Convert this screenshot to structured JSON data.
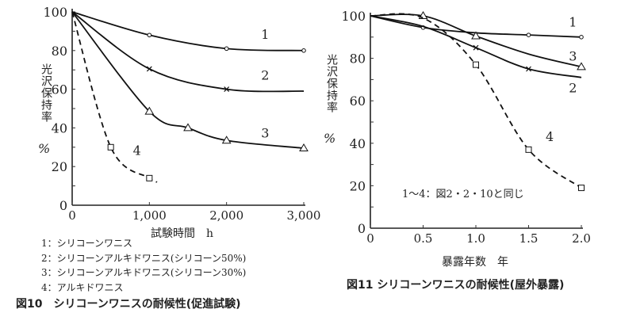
{
  "chart_data": [
    {
      "type": "line",
      "title": "図10　シリコーンワニスの耐候性(促進試験)",
      "xlabel": "試験時間　h",
      "ylabel": "光沢保持率",
      "yunit": "%",
      "xlim": [
        0,
        3000
      ],
      "ylim": [
        0,
        100
      ],
      "xticks": [
        0,
        1000,
        2000,
        3000
      ],
      "xtick_labels": [
        "0",
        "1,000",
        "2,000",
        "3,000"
      ],
      "yticks": [
        0,
        20,
        40,
        60,
        80,
        100
      ],
      "ytick_labels": [
        "0",
        "20",
        "40",
        "60",
        "80",
        "100"
      ],
      "grid": false,
      "series": [
        {
          "name": "1",
          "marker": "circle",
          "dashed": false,
          "x": [
            0,
            1000,
            2000,
            3000
          ],
          "y": [
            100,
            88,
            81,
            80
          ],
          "marked": [
            1,
            2,
            3
          ],
          "label_at": [
            2500,
            86
          ]
        },
        {
          "name": "2",
          "marker": "x",
          "dashed": false,
          "x": [
            0,
            1000,
            2000,
            3000
          ],
          "y": [
            100,
            70.5,
            60,
            59
          ],
          "marked": [
            1,
            2
          ],
          "label_at": [
            2500,
            65
          ]
        },
        {
          "name": "3",
          "marker": "triangle",
          "dashed": false,
          "x": [
            0,
            1000,
            1500,
            2000,
            3000
          ],
          "y": [
            100,
            48.5,
            40,
            33.5,
            29.5
          ],
          "marked": [
            1,
            2,
            3,
            4
          ],
          "label_at": [
            2500,
            35
          ]
        },
        {
          "name": "4",
          "marker": "square",
          "dashed": true,
          "x": [
            0,
            500,
            1000,
            1100
          ],
          "y": [
            100,
            30,
            14,
            12
          ],
          "marked": [
            1,
            2
          ],
          "label_at": [
            840,
            26
          ]
        }
      ],
      "legend": [
        "1：シリコーンワニス",
        "2：シリコーンアルキドワニス(シリコーン50%)",
        "3：シリコーンアルキドワニス(シリコーン30%)",
        "4：アルキドワニス"
      ]
    },
    {
      "type": "line",
      "title": "図11 シリコーンワニスの耐候性(屋外暴露)",
      "xlabel": "暴露年数　年",
      "ylabel": "光沢保持率",
      "yunit": "%",
      "xlim": [
        0,
        2.0
      ],
      "ylim": [
        0,
        100
      ],
      "xticks": [
        0,
        0.5,
        1.0,
        1.5,
        2.0
      ],
      "xtick_labels": [
        "0",
        "0.5",
        "1.0",
        "1.5",
        "2.0"
      ],
      "yticks": [
        0,
        20,
        40,
        60,
        80,
        100
      ],
      "ytick_labels": [
        "0",
        "20",
        "40",
        "60",
        "80",
        "100"
      ],
      "grid": false,
      "annotation": "1～4：図2・2・10と同じ",
      "series": [
        {
          "name": "1",
          "marker": "circle",
          "dashed": false,
          "x": [
            0,
            0.5,
            1.0,
            1.5,
            2.0
          ],
          "y": [
            100,
            94.5,
            92,
            91,
            90
          ],
          "marked": [
            1,
            3,
            4
          ],
          "label_at": [
            1.92,
            95
          ]
        },
        {
          "name": "2",
          "marker": "x",
          "dashed": false,
          "x": [
            0,
            0.5,
            1.0,
            1.5,
            2.0
          ],
          "y": [
            100,
            95,
            85,
            75,
            71
          ],
          "marked": [
            2,
            3
          ],
          "label_at": [
            1.92,
            64
          ]
        },
        {
          "name": "3",
          "marker": "triangle",
          "dashed": false,
          "x": [
            0,
            0.5,
            1.0,
            1.5,
            2.0
          ],
          "y": [
            100,
            100,
            90.5,
            82,
            76
          ],
          "marked": [
            1,
            2,
            4
          ],
          "label_at": [
            1.92,
            79
          ]
        },
        {
          "name": "4",
          "marker": "square",
          "dashed": true,
          "x": [
            0,
            0.5,
            1.0,
            1.5,
            2.0
          ],
          "y": [
            100,
            99,
            77,
            37,
            19
          ],
          "marked": [
            2,
            3,
            4
          ],
          "label_at": [
            1.7,
            41
          ]
        }
      ]
    }
  ]
}
